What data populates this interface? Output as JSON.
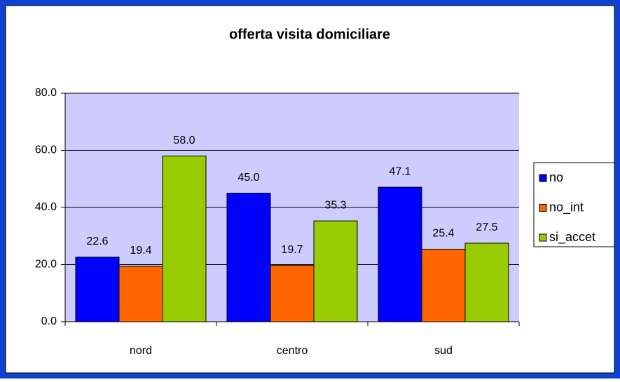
{
  "chart_data": {
    "type": "bar",
    "title": "offerta visita domiciliare",
    "categories": [
      "nord",
      "centro",
      "sud"
    ],
    "series": [
      {
        "name": "no",
        "color": "#0000ff",
        "values": [
          22.6,
          45.0,
          47.1
        ],
        "value_labels": [
          "22.6",
          "45.0",
          "47.1"
        ]
      },
      {
        "name": "no_int",
        "color": "#ff6600",
        "values": [
          19.4,
          19.7,
          25.4
        ],
        "value_labels": [
          "19.4",
          "19.7",
          "25.4"
        ]
      },
      {
        "name": "si_accet",
        "color": "#99cc00",
        "values": [
          58.0,
          35.3,
          27.5
        ],
        "value_labels": [
          "58.0",
          "35.3",
          "27.5"
        ]
      }
    ],
    "ylim": [
      0,
      80
    ],
    "yticks": [
      {
        "value": 0,
        "label": "0.0"
      },
      {
        "value": 20,
        "label": "20.0"
      },
      {
        "value": 40,
        "label": "40.0"
      },
      {
        "value": 60,
        "label": "60.0"
      },
      {
        "value": 80,
        "label": "80.0"
      }
    ],
    "grid": true,
    "legend": "right",
    "plot_background": "#ccccff"
  }
}
